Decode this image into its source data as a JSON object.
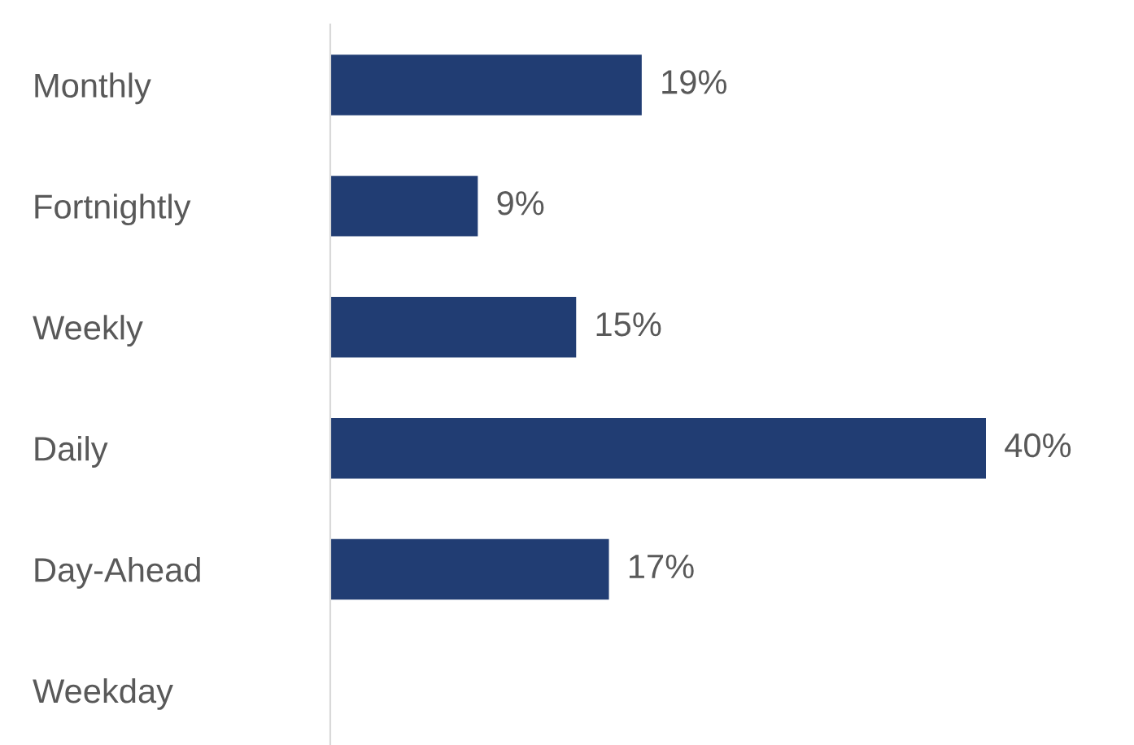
{
  "chart_data": {
    "type": "bar",
    "orientation": "horizontal",
    "categories": [
      "Monthly",
      "Fortnightly",
      "Weekly",
      "Daily",
      "Day-Ahead",
      "Weekday"
    ],
    "values": [
      19,
      9,
      15,
      40,
      17,
      null
    ],
    "value_labels": [
      "19%",
      "9%",
      "15%",
      "40%",
      "17%",
      null
    ],
    "color": "#213d73",
    "grid": false,
    "legend": false
  }
}
